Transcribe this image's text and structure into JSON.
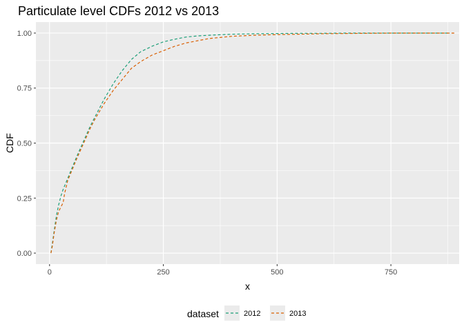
{
  "chart_data": {
    "type": "line",
    "title": "Particulate level CDFs 2012 vs 2013",
    "xlabel": "x",
    "ylabel": "CDF",
    "xlim": [
      -30,
      900
    ],
    "ylim": [
      -0.05,
      1.05
    ],
    "x_ticks": [
      0,
      250,
      500,
      750
    ],
    "x_tick_labels": [
      "0",
      "250",
      "500",
      "750"
    ],
    "y_ticks": [
      0,
      0.25,
      0.5,
      0.75,
      1.0
    ],
    "y_tick_labels": [
      "0.00",
      "0.25",
      "0.50",
      "0.75",
      "1.00"
    ],
    "grid": true,
    "legend": {
      "title": "dataset",
      "position": "bottom"
    },
    "series": [
      {
        "name": "2012",
        "color": "#1b9e77",
        "dash": "dashed",
        "x": [
          3,
          6,
          10,
          15,
          20,
          25,
          30,
          40,
          50,
          60,
          75,
          90,
          100,
          120,
          140,
          160,
          180,
          200,
          225,
          250,
          275,
          300,
          325,
          350,
          400,
          450,
          500,
          550,
          600,
          650,
          700,
          750,
          800,
          850,
          880
        ],
        "y": [
          0.0,
          0.04,
          0.1,
          0.17,
          0.22,
          0.26,
          0.29,
          0.34,
          0.39,
          0.44,
          0.51,
          0.58,
          0.62,
          0.7,
          0.77,
          0.83,
          0.88,
          0.915,
          0.94,
          0.96,
          0.972,
          0.982,
          0.987,
          0.99,
          0.995,
          0.997,
          0.998,
          0.999,
          0.999,
          1.0,
          1.0,
          1.0,
          1.0,
          1.0,
          1.0
        ]
      },
      {
        "name": "2013",
        "color": "#d95f02",
        "dash": "dashed",
        "x": [
          3,
          6,
          10,
          15,
          20,
          25,
          30,
          33,
          40,
          50,
          60,
          75,
          90,
          100,
          120,
          140,
          160,
          180,
          200,
          225,
          250,
          275,
          300,
          325,
          350,
          400,
          450,
          500,
          550,
          600,
          650,
          700,
          750,
          800,
          850,
          890
        ],
        "y": [
          0.0,
          0.03,
          0.09,
          0.15,
          0.19,
          0.21,
          0.23,
          0.27,
          0.33,
          0.38,
          0.43,
          0.5,
          0.57,
          0.61,
          0.68,
          0.74,
          0.79,
          0.84,
          0.87,
          0.9,
          0.92,
          0.94,
          0.955,
          0.965,
          0.975,
          0.985,
          0.99,
          0.993,
          0.995,
          0.997,
          0.998,
          0.999,
          1.0,
          1.0,
          1.0,
          1.0
        ]
      }
    ]
  }
}
